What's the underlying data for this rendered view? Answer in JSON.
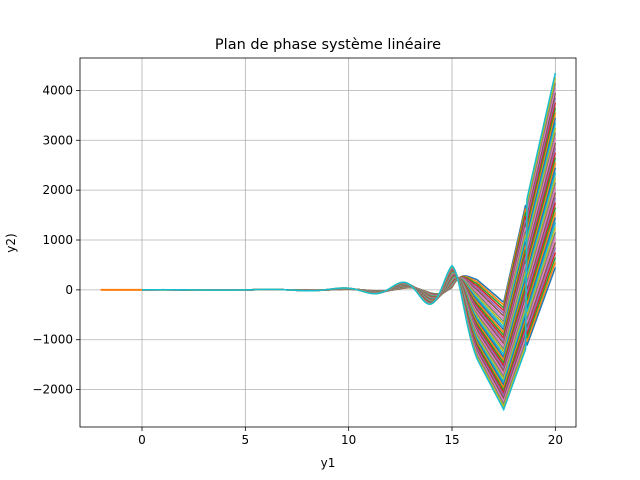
{
  "chart_data": {
    "type": "line",
    "title": "Plan de phase système linéaire",
    "xlabel": "y1",
    "ylabel": "y2)",
    "xlim": [
      -3,
      21
    ],
    "ylim": [
      -2750,
      4650
    ],
    "xticks": [
      0,
      5,
      10,
      15,
      20
    ],
    "yticks": [
      -2000,
      -1000,
      0,
      1000,
      2000,
      3000,
      4000
    ],
    "xtick_labels": [
      "0",
      "5",
      "10",
      "15",
      "20"
    ],
    "ytick_labels": [
      "−2000",
      "−1000",
      "0",
      "1000",
      "2000",
      "3000",
      "4000"
    ],
    "grid": true,
    "legend": "none",
    "series_count": 40,
    "x_domain": [
      0,
      20
    ],
    "initial_segment": {
      "x": [
        -2,
        0
      ],
      "y": 0
    },
    "envelope_points": {
      "x": [
        8,
        11,
        14.3,
        17.5,
        20
      ],
      "y_low": [
        70,
        -330,
        120,
        -2400,
        450
      ],
      "y_high": [
        130,
        -230,
        880,
        -250,
        4350
      ]
    },
    "colors": [
      "#1f77b4",
      "#ff7f0e",
      "#2ca02c",
      "#d62728",
      "#9467bd",
      "#8c564b",
      "#e377c2",
      "#7f7f7f",
      "#bcbd22",
      "#17becf"
    ]
  }
}
